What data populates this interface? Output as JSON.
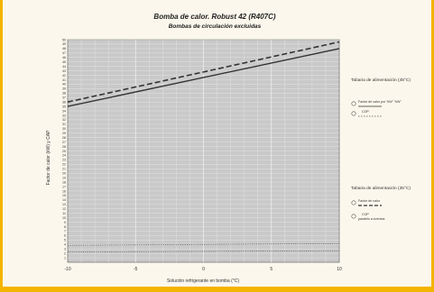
{
  "chart_data": {
    "type": "line",
    "title": "Bomba de calor. Robust 42 (R407C)",
    "subtitle": "Bombas de circulación excluidas",
    "xlabel": "Solución refrigerante en bomba (°C)",
    "ylabel": "Factor de calor (kW) y CAP",
    "xlim": [
      -10,
      10
    ],
    "ylim": [
      0,
      50
    ],
    "x_ticks": [
      "-5",
      "0",
      "5",
      "10"
    ],
    "y_ticks": [
      "1",
      "2",
      "3",
      "4",
      "5",
      "6",
      "7",
      "8",
      "9",
      "10",
      "11",
      "12",
      "13",
      "14",
      "15",
      "16",
      "17",
      "18",
      "19",
      "20",
      "21",
      "22",
      "23",
      "24",
      "25",
      "26",
      "27",
      "28",
      "29",
      "30",
      "31",
      "32",
      "33",
      "34",
      "35",
      "36",
      "37",
      "38",
      "39",
      "40",
      "41",
      "42",
      "43",
      "44",
      "45",
      "46",
      "47",
      "48",
      "49",
      "50"
    ],
    "grid": true,
    "series": [
      {
        "name": "Factor de calor",
        "style": "solid",
        "color": "#333333",
        "x": [
          -10,
          10
        ],
        "y": [
          35,
          48
        ]
      },
      {
        "name": "",
        "style": "dashed",
        "color": "#333333",
        "x": [
          -10,
          10
        ],
        "y": [
          36,
          49.5
        ]
      },
      {
        "name": "",
        "style": "dotted",
        "color": "#555555",
        "x": [
          -10,
          10
        ],
        "y": [
          3.8,
          4.2
        ]
      },
      {
        "name": "",
        "style": "dotted",
        "color": "#555555",
        "x": [
          -10,
          10
        ],
        "y": [
          2.3,
          2.6
        ]
      }
    ],
    "legend": {
      "placement": "right",
      "group1_heading": "Tabaria de alimentación (45°C)",
      "group1_items": [
        "Factor de calor por \"kW\" \"kW\"",
        "COP"
      ],
      "group2_heading": "Tabaria de alimentación (35°C)",
      "group2_items": [
        "Factor de calor",
        "COP",
        "paralelo a eventos"
      ]
    }
  }
}
